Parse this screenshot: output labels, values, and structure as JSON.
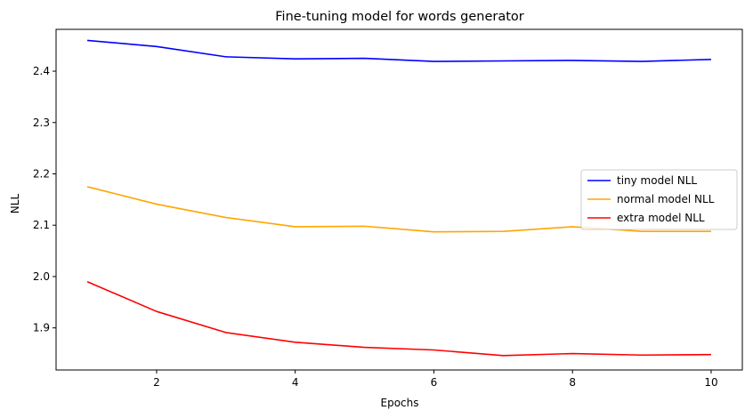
{
  "chart_data": {
    "type": "line",
    "title": "Fine-tuning model for words generator",
    "xlabel": "Epochs",
    "ylabel": "NLL",
    "xlim": [
      0.55,
      10.45
    ],
    "ylim": [
      1.818,
      2.4815
    ],
    "x": [
      1,
      2,
      3,
      4,
      5,
      6,
      7,
      8,
      9,
      10
    ],
    "xticks": [
      2,
      4,
      6,
      8,
      10
    ],
    "yticks": [
      1.9,
      2.0,
      2.1,
      2.2,
      2.3,
      2.4
    ],
    "ytick_labels": [
      "1.9",
      "2.0",
      "2.1",
      "2.2",
      "2.3",
      "2.4"
    ],
    "grid": false,
    "legend_position": "center-right",
    "series": [
      {
        "name": "tiny model NLL",
        "color": "#0000ff",
        "values": [
          2.46,
          2.448,
          2.428,
          2.424,
          2.425,
          2.419,
          2.42,
          2.421,
          2.419,
          2.423
        ]
      },
      {
        "name": "normal model NLL",
        "color": "#ffa500",
        "values": [
          2.175,
          2.141,
          2.115,
          2.097,
          2.098,
          2.087,
          2.088,
          2.097,
          2.088,
          2.088
        ]
      },
      {
        "name": "extra model NLL",
        "color": "#ff0000",
        "values": [
          1.99,
          1.932,
          1.891,
          1.872,
          1.862,
          1.857,
          1.846,
          1.85,
          1.847,
          1.848
        ]
      }
    ]
  }
}
